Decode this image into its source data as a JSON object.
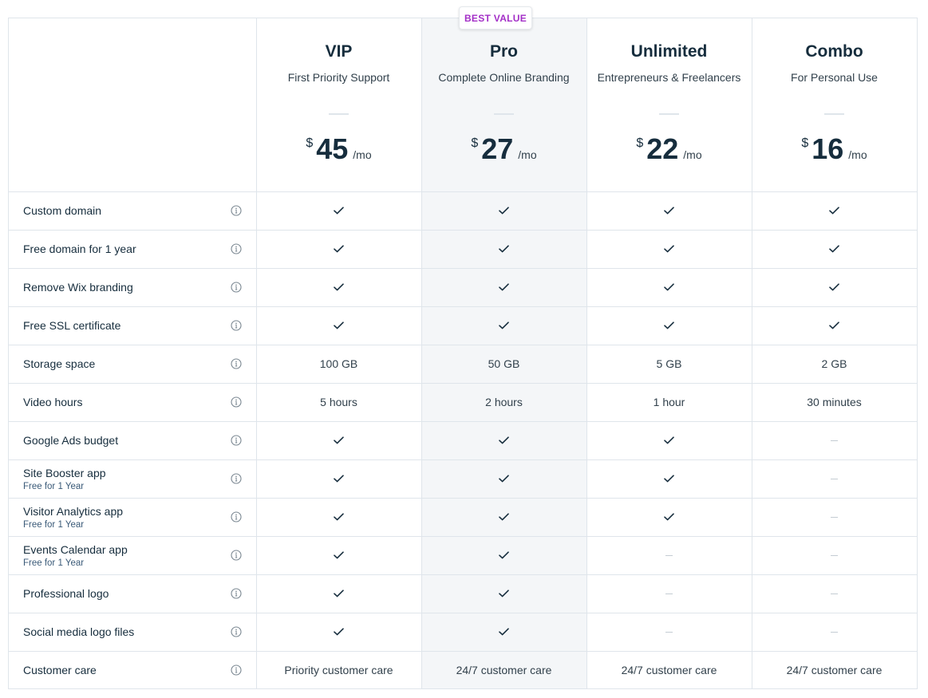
{
  "badge": "BEST VALUE",
  "plans": [
    {
      "name": "VIP",
      "subtitle": "First Priority Support",
      "currency": "$",
      "price": "45",
      "period": "/mo"
    },
    {
      "name": "Pro",
      "subtitle": "Complete Online Branding",
      "currency": "$",
      "price": "27",
      "period": "/mo"
    },
    {
      "name": "Unlimited",
      "subtitle": "Entrepreneurs & Freelancers",
      "currency": "$",
      "price": "22",
      "period": "/mo"
    },
    {
      "name": "Combo",
      "subtitle": "For Personal Use",
      "currency": "$",
      "price": "16",
      "period": "/mo"
    }
  ],
  "features": [
    {
      "label": "Custom domain",
      "sub": "",
      "values": [
        "check",
        "check",
        "check",
        "check"
      ]
    },
    {
      "label": "Free domain for 1 year",
      "sub": "",
      "values": [
        "check",
        "check",
        "check",
        "check"
      ]
    },
    {
      "label": "Remove Wix branding",
      "sub": "",
      "values": [
        "check",
        "check",
        "check",
        "check"
      ]
    },
    {
      "label": "Free SSL certificate",
      "sub": "",
      "values": [
        "check",
        "check",
        "check",
        "check"
      ]
    },
    {
      "label": "Storage space",
      "sub": "",
      "values": [
        "100 GB",
        "50 GB",
        "5 GB",
        "2 GB"
      ]
    },
    {
      "label": "Video hours",
      "sub": "",
      "values": [
        "5 hours",
        "2 hours",
        "1 hour",
        "30 minutes"
      ]
    },
    {
      "label": "Google Ads budget",
      "sub": "",
      "values": [
        "check",
        "check",
        "check",
        "dash"
      ]
    },
    {
      "label": "Site Booster app",
      "sub": "Free for 1 Year",
      "values": [
        "check",
        "check",
        "check",
        "dash"
      ]
    },
    {
      "label": "Visitor Analytics app",
      "sub": "Free for 1 Year",
      "values": [
        "check",
        "check",
        "check",
        "dash"
      ]
    },
    {
      "label": "Events Calendar app",
      "sub": "Free for 1 Year",
      "values": [
        "check",
        "check",
        "dash",
        "dash"
      ]
    },
    {
      "label": "Professional logo",
      "sub": "",
      "values": [
        "check",
        "check",
        "dash",
        "dash"
      ]
    },
    {
      "label": "Social media logo files",
      "sub": "",
      "values": [
        "check",
        "check",
        "dash",
        "dash"
      ]
    },
    {
      "label": "Customer care",
      "sub": "",
      "values": [
        "Priority customer care",
        "24/7 customer care",
        "24/7 customer care",
        "24/7 customer care"
      ]
    }
  ],
  "icons": {
    "info": "info-icon",
    "check": "checkmark-icon",
    "dash": "dash-icon"
  },
  "colors": {
    "accent": "#a32fc7",
    "highlight_column": "#f4f6f8",
    "border": "#dfe5eb",
    "text": "#162d3d"
  }
}
